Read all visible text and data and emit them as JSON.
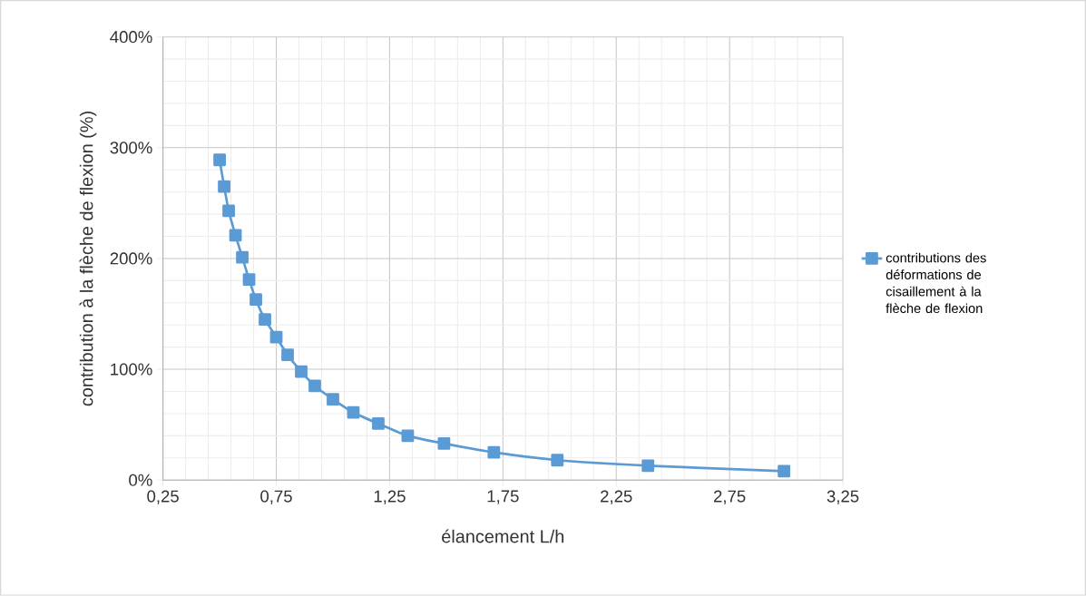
{
  "chart_data": {
    "type": "line",
    "xlabel": "élancement L/h",
    "ylabel": "contribution à la flèche de flexion (%)",
    "series": [
      {
        "name": "contributions des déformations de cisaillement à la flèche de flexion",
        "color": "#5b9bd5",
        "x": [
          0.5,
          0.52,
          0.54,
          0.57,
          0.6,
          0.63,
          0.66,
          0.7,
          0.75,
          0.8,
          0.86,
          0.92,
          1.0,
          1.09,
          1.2,
          1.33,
          1.49,
          1.71,
          1.99,
          2.39,
          2.99
        ],
        "values": [
          289,
          265,
          243,
          221,
          201,
          181,
          163,
          145,
          129,
          113,
          98,
          85,
          73,
          61,
          51,
          40,
          33,
          25,
          18,
          13,
          8
        ]
      }
    ],
    "xlim": [
      0.25,
      3.25
    ],
    "xticks": [
      {
        "value": 0.25,
        "label": "0,25"
      },
      {
        "value": 0.75,
        "label": "0,75"
      },
      {
        "value": 1.25,
        "label": "1,25"
      },
      {
        "value": 1.75,
        "label": "1,75"
      },
      {
        "value": 2.25,
        "label": "2,25"
      },
      {
        "value": 2.75,
        "label": "2,75"
      },
      {
        "value": 3.25,
        "label": "3,25"
      }
    ],
    "ylim": [
      0,
      400
    ],
    "yticks": [
      {
        "value": 0,
        "label": "0%"
      },
      {
        "value": 100,
        "label": "100%"
      },
      {
        "value": 200,
        "label": "200%"
      },
      {
        "value": 300,
        "label": "300%"
      },
      {
        "value": 400,
        "label": "400%"
      }
    ],
    "grid": true,
    "legend": "right",
    "marker": "square",
    "line_style": "solid"
  }
}
